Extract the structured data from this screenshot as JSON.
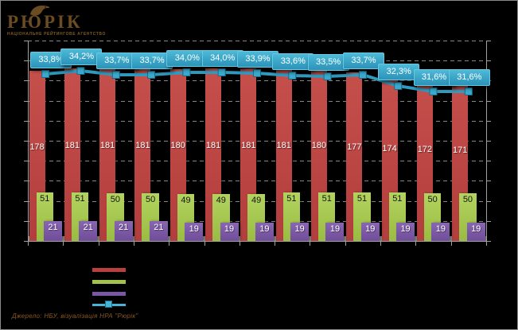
{
  "logo": {
    "title": "РЮРІК",
    "tagline": "НАЦІОНАЛЬНЕ РЕЙТИНГОВЕ АГЕНТСТВО"
  },
  "source_note": "Джерело: НБУ, візуалізація НРА \"Рюрік\"",
  "colors": {
    "background": "#000000",
    "frame_border": "#8a8a8a",
    "axis": "#a0a0a0",
    "gridline": "#a8a8a8",
    "floor": "#8f8f8f",
    "logo_brown": "#6b4c22",
    "source_text": "#8a5722",
    "red_bar": "#b84341",
    "green_bar": "#a5c44f",
    "purple_bar": "#7d58a6",
    "line_blue": "#2f9cc0",
    "callout_fill": "#35a3c6",
    "callout_border": "#65c9e2",
    "callout_text": "#ffffff"
  },
  "chart_data": {
    "type": "bar",
    "subtype": "grouped-bars-with-line-overlay",
    "num_categories": 13,
    "categories_note": "category axis labels and numeric axis labels are rendered black-on-black and not legible in the image",
    "grid": true,
    "series": [
      {
        "name": "red-bars",
        "type": "bar",
        "color": "#b84341",
        "values": [
          178,
          181,
          181,
          181,
          180,
          181,
          181,
          181,
          180,
          177,
          174,
          172,
          171
        ]
      },
      {
        "name": "green-bars",
        "type": "bar",
        "color": "#a5c44f",
        "values": [
          51,
          51,
          50,
          50,
          49,
          49,
          49,
          51,
          51,
          51,
          51,
          50,
          50
        ]
      },
      {
        "name": "purple-bars",
        "type": "bar",
        "color": "#7d58a6",
        "values": [
          21,
          21,
          21,
          21,
          19,
          19,
          19,
          19,
          19,
          19,
          19,
          19,
          19
        ]
      },
      {
        "name": "percent-line",
        "type": "line",
        "color": "#2f9cc0",
        "marker": "square",
        "labels": [
          "33,8%",
          "34,2%",
          "33,7%",
          "33,7%",
          "34,0%",
          "34,0%",
          "33,9%",
          "33,6%",
          "33,5%",
          "33,7%",
          "32,3%",
          "31,6%",
          "31,6%"
        ],
        "values": [
          33.8,
          34.2,
          33.7,
          33.7,
          34.0,
          34.0,
          33.9,
          33.6,
          33.5,
          33.7,
          32.3,
          31.6,
          31.6
        ]
      }
    ],
    "legend": {
      "position": "bottom-left",
      "labels_visible": false,
      "items": [
        {
          "swatch": "bar",
          "color": "#b8403e"
        },
        {
          "swatch": "bar",
          "color": "#a2c24c"
        },
        {
          "swatch": "bar",
          "color": "#7b56a4"
        },
        {
          "swatch": "line-marker",
          "color": "#45b4d6"
        }
      ]
    }
  }
}
